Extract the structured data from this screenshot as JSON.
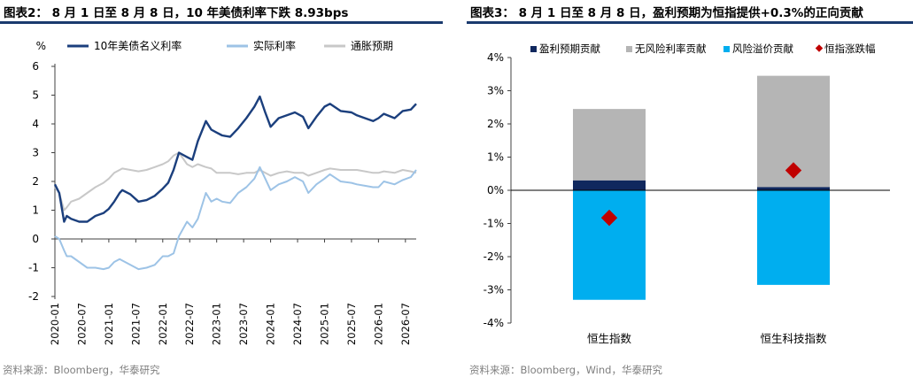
{
  "left": {
    "title": "图表2：  8 月 1 日至 8 月 8 日，10 年美债利率下跌 8.93bps",
    "source": "资料来源：Bloomberg，华泰研究",
    "y_unit": "%",
    "legend": [
      "10年美债名义利率",
      "实际利率",
      "通胀预期"
    ],
    "colors": {
      "nominal": "#1b3f7d",
      "real": "#9dc3e6",
      "inflation": "#c8c8c8",
      "rule": "#1a3a6e",
      "source": "#7f7f7f"
    }
  },
  "right": {
    "title": "图表3：  8 月 1 日至 8 月 8 日，盈利预期为恒指提供+0.3%的正向贡献",
    "source": "资料来源：Bloomberg，Wind，华泰研究",
    "legend": [
      "盈利预期贡献",
      "无风险利率贡献",
      "风险溢价贡献",
      "恒指涨跌幅"
    ],
    "colors": {
      "earnings": "#10285e",
      "riskfree": "#b5b5b5",
      "premium": "#00aeef",
      "index": "#c00000"
    }
  },
  "chart_data": [
    {
      "type": "line",
      "title": "8 月 1 日至 8 月 8 日，10 年美债利率下跌 8.93bps",
      "ylabel": "%",
      "ylim": [
        -2,
        6
      ],
      "yticks": [
        -2,
        -1,
        0,
        1,
        2,
        3,
        4,
        5,
        6
      ],
      "xlim": [
        2020.0,
        2026.7
      ],
      "xticks": [
        2020.0,
        2020.5,
        2021.0,
        2021.5,
        2022.0,
        2022.5,
        2023.0,
        2023.5,
        2024.0,
        2024.5,
        2025.0,
        2025.5,
        2026.0,
        2026.5
      ],
      "xtick_labels": [
        "2020-01",
        "2020-07",
        "2021-01",
        "2021-07",
        "2022-01",
        "2022-07",
        "2023-01",
        "2023-07",
        "2024-01",
        "2024-07",
        "2025-01",
        "2025-07",
        "2026-01",
        "2026-07"
      ],
      "legend_position": "top",
      "grid": false,
      "series": [
        {
          "name": "10年美债名义利率",
          "x": [
            2020.0,
            2020.08,
            2020.17,
            2020.22,
            2020.3,
            2020.45,
            2020.6,
            2020.75,
            2020.9,
            2021.0,
            2021.1,
            2021.2,
            2021.25,
            2021.4,
            2021.55,
            2021.7,
            2021.85,
            2022.0,
            2022.1,
            2022.2,
            2022.3,
            2022.45,
            2022.55,
            2022.65,
            2022.8,
            2022.9,
            2023.0,
            2023.1,
            2023.25,
            2023.4,
            2023.55,
            2023.7,
            2023.8,
            2023.9,
            2024.0,
            2024.15,
            2024.3,
            2024.45,
            2024.6,
            2024.7,
            2024.85,
            2025.0,
            2025.1,
            2025.3,
            2025.5,
            2025.6,
            2025.75,
            2025.9,
            2026.0,
            2026.1,
            2026.3,
            2026.45,
            2026.6,
            2026.7
          ],
          "values": [
            1.9,
            1.6,
            0.6,
            0.8,
            0.7,
            0.6,
            0.6,
            0.8,
            0.9,
            1.05,
            1.3,
            1.6,
            1.7,
            1.55,
            1.3,
            1.35,
            1.5,
            1.75,
            1.95,
            2.4,
            3.0,
            2.85,
            2.75,
            3.4,
            4.1,
            3.8,
            3.7,
            3.6,
            3.55,
            3.85,
            4.2,
            4.6,
            4.95,
            4.4,
            3.9,
            4.2,
            4.3,
            4.4,
            4.25,
            3.85,
            4.25,
            4.6,
            4.7,
            4.45,
            4.4,
            4.3,
            4.2,
            4.1,
            4.2,
            4.35,
            4.2,
            4.45,
            4.5,
            4.7
          ]
        },
        {
          "name": "实际利率",
          "x": [
            2020.0,
            2020.08,
            2020.17,
            2020.22,
            2020.3,
            2020.45,
            2020.6,
            2020.75,
            2020.9,
            2021.0,
            2021.1,
            2021.2,
            2021.25,
            2021.4,
            2021.55,
            2021.7,
            2021.85,
            2022.0,
            2022.1,
            2022.2,
            2022.3,
            2022.45,
            2022.55,
            2022.65,
            2022.8,
            2022.9,
            2023.0,
            2023.1,
            2023.25,
            2023.4,
            2023.55,
            2023.7,
            2023.8,
            2023.9,
            2024.0,
            2024.15,
            2024.3,
            2024.45,
            2024.6,
            2024.7,
            2024.85,
            2025.0,
            2025.1,
            2025.3,
            2025.5,
            2025.6,
            2025.75,
            2025.9,
            2026.0,
            2026.1,
            2026.3,
            2026.45,
            2026.6,
            2026.7
          ],
          "values": [
            0.1,
            0.0,
            -0.4,
            -0.6,
            -0.6,
            -0.8,
            -1.0,
            -1.0,
            -1.05,
            -1.0,
            -0.8,
            -0.7,
            -0.75,
            -0.9,
            -1.05,
            -1.0,
            -0.9,
            -0.6,
            -0.6,
            -0.5,
            0.1,
            0.6,
            0.4,
            0.7,
            1.6,
            1.3,
            1.4,
            1.3,
            1.25,
            1.6,
            1.8,
            2.1,
            2.5,
            2.1,
            1.7,
            1.9,
            2.0,
            2.15,
            2.0,
            1.6,
            1.9,
            2.1,
            2.25,
            2.0,
            1.95,
            1.9,
            1.85,
            1.8,
            1.8,
            2.0,
            1.9,
            2.05,
            2.15,
            2.4
          ]
        },
        {
          "name": "通胀预期",
          "x": [
            2020.0,
            2020.08,
            2020.17,
            2020.22,
            2020.3,
            2020.45,
            2020.6,
            2020.75,
            2020.9,
            2021.0,
            2021.1,
            2021.2,
            2021.25,
            2021.4,
            2021.55,
            2021.7,
            2021.85,
            2022.0,
            2022.1,
            2022.2,
            2022.3,
            2022.45,
            2022.55,
            2022.65,
            2022.8,
            2022.9,
            2023.0,
            2023.1,
            2023.25,
            2023.4,
            2023.55,
            2023.7,
            2023.8,
            2023.9,
            2024.0,
            2024.15,
            2024.3,
            2024.45,
            2024.6,
            2024.7,
            2024.85,
            2025.0,
            2025.1,
            2025.3,
            2025.5,
            2025.6,
            2025.75,
            2025.9,
            2026.0,
            2026.1,
            2026.3,
            2026.45,
            2026.6,
            2026.7
          ],
          "values": [
            1.8,
            1.6,
            1.0,
            1.1,
            1.3,
            1.4,
            1.6,
            1.8,
            1.95,
            2.1,
            2.3,
            2.4,
            2.45,
            2.4,
            2.35,
            2.4,
            2.5,
            2.6,
            2.7,
            2.9,
            3.0,
            2.6,
            2.5,
            2.6,
            2.5,
            2.45,
            2.3,
            2.3,
            2.3,
            2.25,
            2.3,
            2.3,
            2.4,
            2.3,
            2.2,
            2.3,
            2.35,
            2.3,
            2.3,
            2.2,
            2.3,
            2.4,
            2.45,
            2.4,
            2.4,
            2.4,
            2.35,
            2.3,
            2.3,
            2.35,
            2.3,
            2.4,
            2.35,
            2.3
          ]
        }
      ]
    },
    {
      "type": "bar",
      "title": "8 月 1 日至 8 月 8 日，盈利预期为恒指提供+0.3%的正向贡献",
      "categories": [
        "恒生指数",
        "恒生科技指数"
      ],
      "ylim": [
        -4,
        4
      ],
      "yticks": [
        -4,
        -3,
        -2,
        -1,
        0,
        1,
        2,
        3,
        4
      ],
      "ytick_labels": [
        "-4%",
        "-3%",
        "-2%",
        "-1%",
        "0%",
        "1%",
        "2%",
        "3%",
        "4%"
      ],
      "stacked": true,
      "legend_position": "top",
      "grid": false,
      "series": [
        {
          "name": "盈利预期贡献",
          "values": [
            0.3,
            0.1
          ]
        },
        {
          "name": "无风险利率贡献",
          "values": [
            2.15,
            3.35
          ]
        },
        {
          "name": "风险溢价贡献",
          "values": [
            -3.3,
            -2.85
          ]
        }
      ],
      "markers": {
        "name": "恒指涨跌幅",
        "values": [
          -0.83,
          0.6
        ]
      }
    }
  ]
}
